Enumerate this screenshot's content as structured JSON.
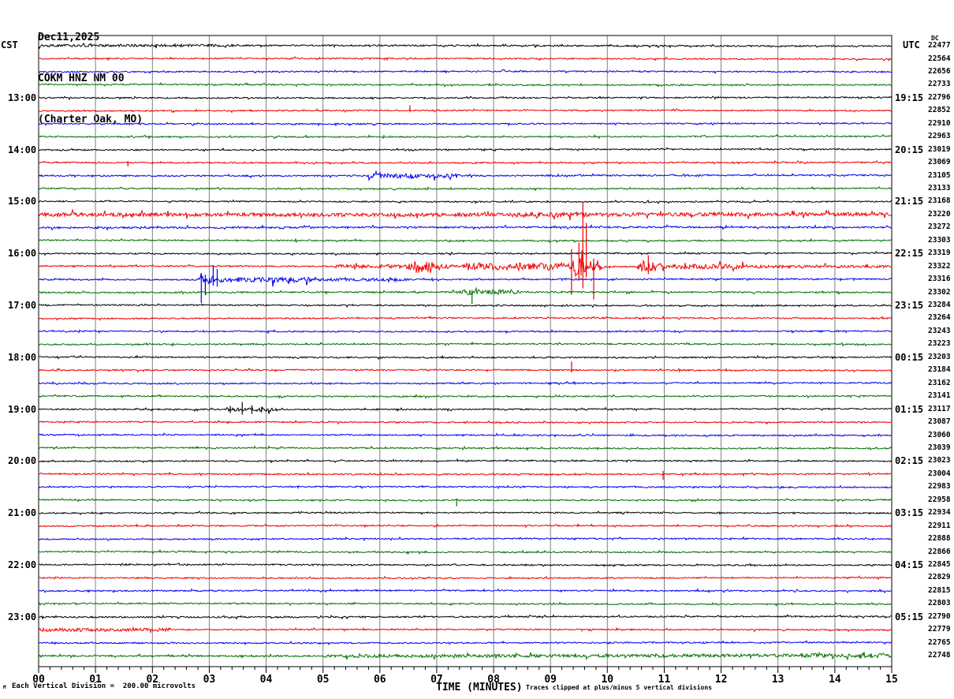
{
  "header": {
    "date": "Dec11,2025",
    "station": "COKM HNZ NM 00",
    "location": "(Charter Oak, MO)"
  },
  "axes": {
    "left_label": "CST",
    "right_label": "UTC",
    "dc_label": "DC",
    "x_title": "TIME (MINUTES)",
    "x_ticks": [
      "00",
      "01",
      "02",
      "03",
      "04",
      "05",
      "06",
      "07",
      "08",
      "09",
      "10",
      "11",
      "12",
      "13",
      "14",
      "15"
    ]
  },
  "footer": {
    "corner_mark": "M",
    "scale_note": "Each Vertical Division =  200.00 microvolts",
    "clip_note": "Traces clipped at plus/minus 5 vertical divisions"
  },
  "chart_data": {
    "type": "line",
    "subtype": "helicorder-seismogram",
    "title": "COKM HNZ NM 00 (Charter Oak, MO) Dec11,2025",
    "xlabel": "TIME (MINUTES)",
    "x_range_minutes": [
      0,
      15
    ],
    "minutes_per_row": 15,
    "vertical_division_microvolts": 200.0,
    "clip_divisions": 5,
    "grid": "vertical-minute-lines",
    "colors": {
      "black": "#000000",
      "red": "#ee0000",
      "blue": "#0000ee",
      "green": "#007000",
      "gridline": "#808080",
      "frame": "#000000"
    },
    "color_cycle": [
      "black",
      "red",
      "blue",
      "green"
    ],
    "rows": [
      {
        "cst": null,
        "utc": null,
        "dc": "22477",
        "color": "black",
        "noise": 1.1
      },
      {
        "cst": null,
        "utc": null,
        "dc": "22564",
        "color": "red",
        "noise": 1.0
      },
      {
        "cst": null,
        "utc": null,
        "dc": "22656",
        "color": "blue",
        "noise": 1.0
      },
      {
        "cst": null,
        "utc": null,
        "dc": "22733",
        "color": "green",
        "noise": 1.0
      },
      {
        "cst": "13:00",
        "utc": "19:15",
        "dc": "22796",
        "color": "black",
        "noise": 1.0
      },
      {
        "cst": null,
        "utc": null,
        "dc": "22852",
        "color": "red",
        "noise": 1.0
      },
      {
        "cst": null,
        "utc": null,
        "dc": "22910",
        "color": "blue",
        "noise": 1.0
      },
      {
        "cst": null,
        "utc": null,
        "dc": "22963",
        "color": "green",
        "noise": 1.0
      },
      {
        "cst": "14:00",
        "utc": "20:15",
        "dc": "23019",
        "color": "black",
        "noise": 1.0
      },
      {
        "cst": null,
        "utc": null,
        "dc": "23069",
        "color": "red",
        "noise": 1.0
      },
      {
        "cst": null,
        "utc": null,
        "dc": "23105",
        "color": "blue",
        "noise": 1.1
      },
      {
        "cst": null,
        "utc": null,
        "dc": "23133",
        "color": "green",
        "noise": 1.0
      },
      {
        "cst": "15:00",
        "utc": "21:15",
        "dc": "23168",
        "color": "black",
        "noise": 1.0
      },
      {
        "cst": null,
        "utc": null,
        "dc": "23220",
        "color": "red",
        "noise": 1.5
      },
      {
        "cst": null,
        "utc": null,
        "dc": "23272",
        "color": "blue",
        "noise": 1.3
      },
      {
        "cst": null,
        "utc": null,
        "dc": "23303",
        "color": "green",
        "noise": 1.0
      },
      {
        "cst": "16:00",
        "utc": "22:15",
        "dc": "23319",
        "color": "black",
        "noise": 1.0
      },
      {
        "cst": null,
        "utc": null,
        "dc": "23322",
        "color": "red",
        "noise": 1.0
      },
      {
        "cst": null,
        "utc": null,
        "dc": "23316",
        "color": "blue",
        "noise": 1.0
      },
      {
        "cst": null,
        "utc": null,
        "dc": "23302",
        "color": "green",
        "noise": 1.1
      },
      {
        "cst": "17:00",
        "utc": "23:15",
        "dc": "23284",
        "color": "black",
        "noise": 1.0
      },
      {
        "cst": null,
        "utc": null,
        "dc": "23264",
        "color": "red",
        "noise": 1.0
      },
      {
        "cst": null,
        "utc": null,
        "dc": "23243",
        "color": "blue",
        "noise": 1.0
      },
      {
        "cst": null,
        "utc": null,
        "dc": "23223",
        "color": "green",
        "noise": 1.0
      },
      {
        "cst": "18:00",
        "utc": "00:15",
        "dc": "23203",
        "color": "black",
        "noise": 1.0
      },
      {
        "cst": null,
        "utc": null,
        "dc": "23184",
        "color": "red",
        "noise": 1.0
      },
      {
        "cst": null,
        "utc": null,
        "dc": "23162",
        "color": "blue",
        "noise": 1.0
      },
      {
        "cst": null,
        "utc": null,
        "dc": "23141",
        "color": "green",
        "noise": 1.0
      },
      {
        "cst": "19:00",
        "utc": "01:15",
        "dc": "23117",
        "color": "black",
        "noise": 1.0
      },
      {
        "cst": null,
        "utc": null,
        "dc": "23087",
        "color": "red",
        "noise": 1.0
      },
      {
        "cst": null,
        "utc": null,
        "dc": "23060",
        "color": "blue",
        "noise": 1.0
      },
      {
        "cst": null,
        "utc": null,
        "dc": "23039",
        "color": "green",
        "noise": 1.0
      },
      {
        "cst": "20:00",
        "utc": "02:15",
        "dc": "23023",
        "color": "black",
        "noise": 1.0
      },
      {
        "cst": null,
        "utc": null,
        "dc": "23004",
        "color": "red",
        "noise": 1.0
      },
      {
        "cst": null,
        "utc": null,
        "dc": "22983",
        "color": "blue",
        "noise": 1.0
      },
      {
        "cst": null,
        "utc": null,
        "dc": "22958",
        "color": "green",
        "noise": 1.0
      },
      {
        "cst": "21:00",
        "utc": "03:15",
        "dc": "22934",
        "color": "black",
        "noise": 1.0
      },
      {
        "cst": null,
        "utc": null,
        "dc": "22911",
        "color": "red",
        "noise": 1.0
      },
      {
        "cst": null,
        "utc": null,
        "dc": "22888",
        "color": "blue",
        "noise": 1.0
      },
      {
        "cst": null,
        "utc": null,
        "dc": "22866",
        "color": "green",
        "noise": 1.0
      },
      {
        "cst": "22:00",
        "utc": "04:15",
        "dc": "22845",
        "color": "black",
        "noise": 1.0
      },
      {
        "cst": null,
        "utc": null,
        "dc": "22829",
        "color": "red",
        "noise": 1.0
      },
      {
        "cst": null,
        "utc": null,
        "dc": "22815",
        "color": "blue",
        "noise": 1.0
      },
      {
        "cst": null,
        "utc": null,
        "dc": "22803",
        "color": "green",
        "noise": 1.0
      },
      {
        "cst": "23:00",
        "utc": "05:15",
        "dc": "22790",
        "color": "black",
        "noise": 1.1
      },
      {
        "cst": null,
        "utc": null,
        "dc": "22779",
        "color": "red",
        "noise": 1.0
      },
      {
        "cst": null,
        "utc": null,
        "dc": "22765",
        "color": "blue",
        "noise": 1.0
      },
      {
        "cst": null,
        "utc": null,
        "dc": "22748",
        "color": "green",
        "noise": 1.2
      }
    ],
    "events": [
      {
        "row": 0,
        "kind": "flat",
        "start": 0,
        "end": 3.5,
        "amp": 0.6
      },
      {
        "row": 5,
        "kind": "spike",
        "t": 6.53,
        "up": 7,
        "down": 2
      },
      {
        "row": 9,
        "kind": "spike",
        "t": 1.57,
        "up": 2,
        "down": 5
      },
      {
        "row": 10,
        "kind": "flat",
        "start": 5.8,
        "end": 7.4,
        "amp": 1.8
      },
      {
        "row": 10,
        "kind": "burst",
        "start": 6.45,
        "end": 6.85,
        "amp": 3.2
      },
      {
        "row": 13,
        "kind": "flat",
        "start": 0,
        "end": 15,
        "amp": 1.0
      },
      {
        "row": 13,
        "kind": "burst",
        "start": 0.1,
        "end": 1.1,
        "amp": 2.0
      },
      {
        "row": 13,
        "kind": "flat",
        "start": 8.3,
        "end": 9.7,
        "amp": 1.8
      },
      {
        "row": 17,
        "kind": "flat",
        "start": 5.2,
        "end": 6.4,
        "amp": 1.5
      },
      {
        "row": 17,
        "kind": "burst",
        "start": 6.4,
        "end": 7.45,
        "amp": 8
      },
      {
        "row": 17,
        "kind": "flat",
        "start": 7.45,
        "end": 9.25,
        "amp": 4
      },
      {
        "row": 17,
        "kind": "burst",
        "start": 9.27,
        "end": 9.98,
        "amp": 13
      },
      {
        "row": 17,
        "kind": "spike",
        "t": 9.37,
        "up": 22,
        "down": 36
      },
      {
        "row": 17,
        "kind": "spike",
        "t": 9.5,
        "up": 30,
        "down": 18
      },
      {
        "row": 17,
        "kind": "spike",
        "t": 9.57,
        "up": 82,
        "down": 28
      },
      {
        "row": 17,
        "kind": "spike",
        "t": 9.63,
        "up": 55,
        "down": 14
      },
      {
        "row": 17,
        "kind": "spike",
        "t": 9.76,
        "up": 10,
        "down": 42
      },
      {
        "row": 17,
        "kind": "burst",
        "start": 10.5,
        "end": 11.12,
        "amp": 9
      },
      {
        "row": 17,
        "kind": "spike",
        "t": 10.72,
        "up": 14,
        "down": 10
      },
      {
        "row": 17,
        "kind": "flat",
        "start": 11.12,
        "end": 12.5,
        "amp": 2.2
      },
      {
        "row": 17,
        "kind": "flat",
        "start": 12.5,
        "end": 15,
        "amp": 1.0
      },
      {
        "row": 18,
        "kind": "burst",
        "start": 2.78,
        "end": 3.45,
        "amp": 6
      },
      {
        "row": 18,
        "kind": "spike",
        "t": 2.86,
        "up": 8,
        "down": 30
      },
      {
        "row": 18,
        "kind": "spike",
        "t": 2.93,
        "up": 6,
        "down": 20
      },
      {
        "row": 18,
        "kind": "spike",
        "t": 3.07,
        "up": 18,
        "down": 8
      },
      {
        "row": 18,
        "kind": "spike",
        "t": 3.14,
        "up": 13,
        "down": 9
      },
      {
        "row": 18,
        "kind": "flat",
        "start": 3.45,
        "end": 4.8,
        "amp": 2.2
      },
      {
        "row": 18,
        "kind": "burst",
        "start": 4.05,
        "end": 4.3,
        "amp": 3.2
      },
      {
        "row": 18,
        "kind": "flat",
        "start": 4.8,
        "end": 6.5,
        "amp": 1.0
      },
      {
        "row": 19,
        "kind": "flat",
        "start": 7.25,
        "end": 8.45,
        "amp": 2.2
      },
      {
        "row": 19,
        "kind": "burst",
        "start": 7.4,
        "end": 8.0,
        "amp": 3.0
      },
      {
        "row": 19,
        "kind": "spike",
        "t": 7.62,
        "up": 3,
        "down": 15
      },
      {
        "row": 25,
        "kind": "spike",
        "t": 9.37,
        "up": 11,
        "down": 3
      },
      {
        "row": 28,
        "kind": "flat",
        "start": 3.3,
        "end": 4.2,
        "amp": 1.6
      },
      {
        "row": 28,
        "kind": "spike",
        "t": 3.37,
        "up": 4,
        "down": 5
      },
      {
        "row": 28,
        "kind": "spike",
        "t": 3.58,
        "up": 9,
        "down": 7
      },
      {
        "row": 28,
        "kind": "spike",
        "t": 3.75,
        "up": 5,
        "down": 6
      },
      {
        "row": 28,
        "kind": "spike",
        "t": 3.92,
        "up": 3,
        "down": 4
      },
      {
        "row": 33,
        "kind": "spike",
        "t": 10.98,
        "up": 4,
        "down": 7
      },
      {
        "row": 35,
        "kind": "spike",
        "t": 7.35,
        "up": 2,
        "down": 8
      },
      {
        "row": 45,
        "kind": "flat",
        "start": 0,
        "end": 2.3,
        "amp": 1.2
      },
      {
        "row": 47,
        "kind": "flat",
        "start": 5.0,
        "end": 15,
        "amp": 0.9
      },
      {
        "row": 47,
        "kind": "flat",
        "start": 13.3,
        "end": 15,
        "amp": 1.8
      }
    ]
  }
}
